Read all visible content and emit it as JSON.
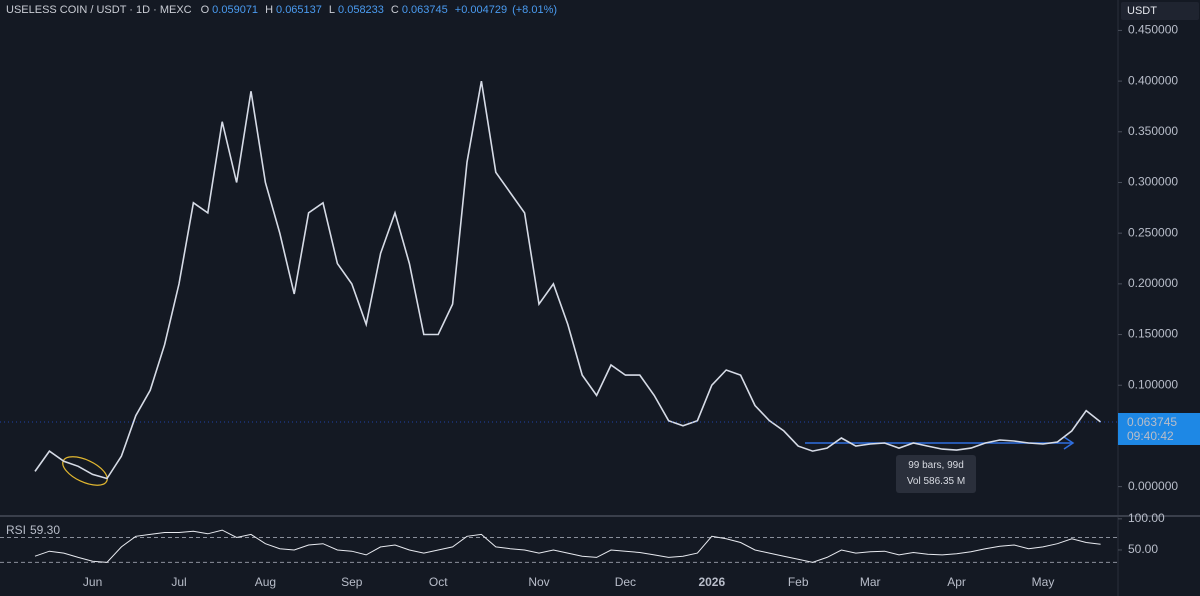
{
  "header": {
    "symbol": "USELESS COIN / USDT · 1D · MEXC",
    "o_label": "O",
    "open": "0.059071",
    "h_label": "H",
    "high": "0.065137",
    "l_label": "L",
    "low": "0.058233",
    "c_label": "C",
    "close": "0.063745",
    "change": "+0.004729",
    "change_pct": "(+8.01%)"
  },
  "currency": "USDT",
  "measure": {
    "range": "99 bars, 99d",
    "volume": "Vol 586.35 M"
  },
  "chart_data": [
    {
      "type": "line",
      "color": "#d6dbe6",
      "categories": [
        null,
        null,
        null,
        null,
        "Jun",
        null,
        null,
        null,
        null,
        null,
        "Jul",
        null,
        null,
        null,
        null,
        null,
        "Aug",
        null,
        null,
        null,
        null,
        null,
        "Sep",
        null,
        null,
        null,
        null,
        null,
        "Oct",
        null,
        null,
        null,
        null,
        null,
        null,
        "Nov",
        null,
        null,
        null,
        null,
        null,
        "Dec",
        null,
        null,
        null,
        null,
        null,
        "2026",
        null,
        null,
        null,
        null,
        null,
        "Feb",
        null,
        null,
        null,
        null,
        "Mar",
        null,
        null,
        null,
        null,
        null,
        "Apr",
        null,
        null,
        null,
        null,
        null,
        "May",
        null,
        null,
        null,
        null
      ],
      "values": [
        0.015,
        0.035,
        0.025,
        0.02,
        0.012,
        0.008,
        0.03,
        0.07,
        0.095,
        0.14,
        0.2,
        0.28,
        0.27,
        0.36,
        0.3,
        0.39,
        0.3,
        0.25,
        0.19,
        0.27,
        0.28,
        0.22,
        0.2,
        0.16,
        0.23,
        0.27,
        0.22,
        0.15,
        0.15,
        0.18,
        0.32,
        0.4,
        0.31,
        0.29,
        0.27,
        0.18,
        0.2,
        0.16,
        0.11,
        0.09,
        0.12,
        0.11,
        0.11,
        0.09,
        0.065,
        0.06,
        0.065,
        0.1,
        0.115,
        0.11,
        0.08,
        0.065,
        0.055,
        0.04,
        0.035,
        0.038,
        0.048,
        0.04,
        0.042,
        0.043,
        0.038,
        0.043,
        0.04,
        0.037,
        0.036,
        0.038,
        0.043,
        0.046,
        0.045,
        0.043,
        0.042,
        0.044,
        0.055,
        0.075,
        0.063745
      ],
      "ylim": [
        -0.028,
        0.48
      ],
      "yticks": [
        {
          "value": 0.45,
          "label": "0.450000"
        },
        {
          "value": 0.4,
          "label": "0.400000"
        },
        {
          "value": 0.35,
          "label": "0.350000"
        },
        {
          "value": 0.3,
          "label": "0.300000"
        },
        {
          "value": 0.25,
          "label": "0.250000"
        },
        {
          "value": 0.2,
          "label": "0.200000"
        },
        {
          "value": 0.15,
          "label": "0.150000"
        },
        {
          "value": 0.1,
          "label": "0.100000"
        },
        {
          "value": 0.05,
          "label": "0.050000"
        },
        {
          "value": 0,
          "label": "0.000000"
        }
      ],
      "last_price": 0.063745,
      "countdown": "09:40:42",
      "grid": false
    },
    {
      "type": "line",
      "title": "RSI",
      "last_value_label": "59.30",
      "color": "#e8eaf0",
      "values": [
        40,
        48,
        45,
        38,
        32,
        30,
        55,
        72,
        75,
        78,
        78,
        80,
        76,
        82,
        70,
        75,
        60,
        52,
        50,
        58,
        60,
        50,
        48,
        42,
        55,
        58,
        50,
        45,
        50,
        55,
        72,
        75,
        55,
        52,
        50,
        45,
        50,
        45,
        40,
        38,
        50,
        48,
        46,
        42,
        38,
        40,
        45,
        72,
        68,
        62,
        50,
        45,
        40,
        35,
        30,
        38,
        50,
        45,
        47,
        48,
        42,
        46,
        43,
        42,
        44,
        47,
        52,
        56,
        58,
        52,
        55,
        60,
        68,
        62,
        59.3
      ],
      "ylim": [
        21,
        103
      ],
      "yticks": [
        {
          "value": 100,
          "label": "100.00"
        },
        {
          "value": 50,
          "label": "50.00"
        }
      ],
      "bands": [
        70,
        30
      ]
    }
  ]
}
